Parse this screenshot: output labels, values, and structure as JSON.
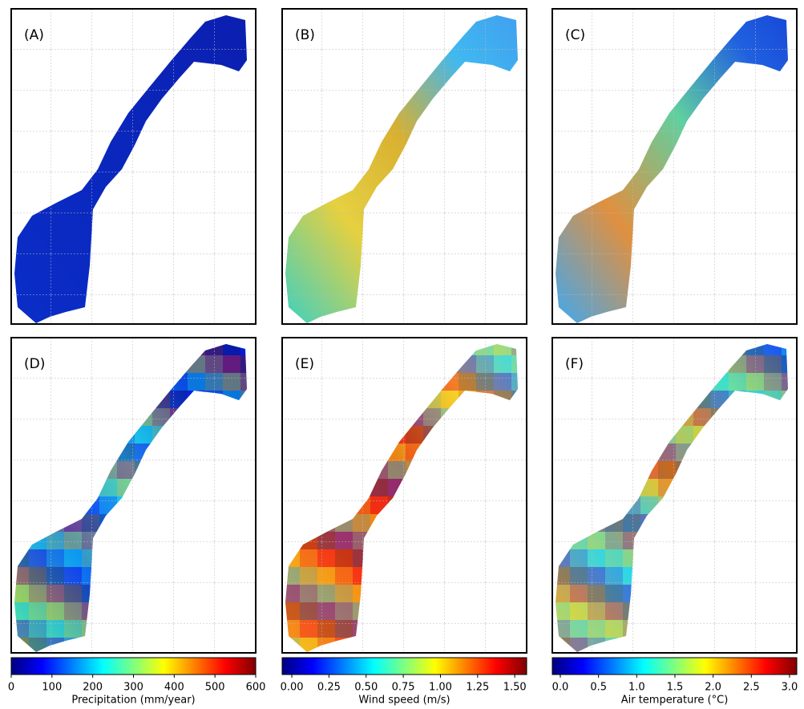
{
  "chart_data": {
    "type": "map",
    "colormap": "jet",
    "panels": [
      {
        "label": "(A)"
      },
      {
        "label": "(B)"
      },
      {
        "label": "(C)"
      },
      {
        "label": "(D)"
      },
      {
        "label": "(E)"
      },
      {
        "label": "(F)"
      }
    ],
    "colorbars": [
      {
        "label": "Precipitation (mm/year)",
        "xlim": [
          0,
          600
        ],
        "xticks": [
          0,
          100,
          200,
          300,
          400,
          500,
          600
        ]
      },
      {
        "label": "Wind speed (m/s)",
        "xlim": [
          -0.065,
          1.58
        ],
        "xticks": [
          {
            "value": 0,
            "label": "0.00"
          },
          {
            "value": 0.25,
            "label": "0.25"
          },
          {
            "value": 0.5,
            "label": "0.50"
          },
          {
            "value": 0.75,
            "label": "0.75"
          },
          {
            "value": 1,
            "label": "1.00"
          },
          {
            "value": 1.25,
            "label": "1.25"
          },
          {
            "value": 1.5,
            "label": "1.50"
          }
        ]
      },
      {
        "label": "Air temperature (°C)",
        "xlim": [
          -0.105,
          3.095
        ],
        "xticks": [
          {
            "value": 0,
            "label": "0.0"
          },
          0.5,
          {
            "value": 1,
            "label": "1.0"
          },
          1.5,
          {
            "value": 2,
            "label": "2.0"
          },
          2.5,
          {
            "value": 3,
            "label": "3.0"
          }
        ]
      }
    ]
  }
}
